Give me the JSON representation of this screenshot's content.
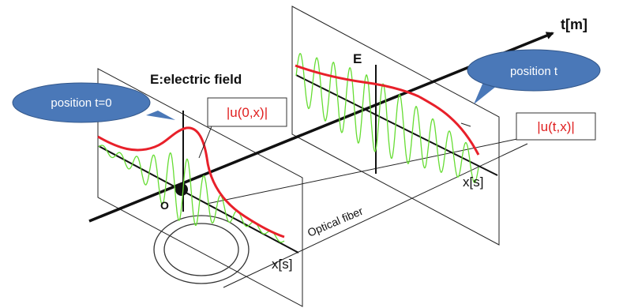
{
  "labels": {
    "t_axis": "t[m]",
    "e_field_axis": "E:electric field",
    "e_axis_right": "E",
    "x_axis_left": "x[s]",
    "x_axis_right": "x[s]",
    "origin": "O",
    "fiber": "Optical fiber",
    "envelope_left": "|u(0,x)|",
    "envelope_right": "|u(t,x)|",
    "bubble_left": "position t=0",
    "bubble_right": "position t"
  },
  "colors": {
    "envelope": "#e8202a",
    "carrier": "#66dd33",
    "bubble": "#4a78b8",
    "axis": "#111111"
  }
}
